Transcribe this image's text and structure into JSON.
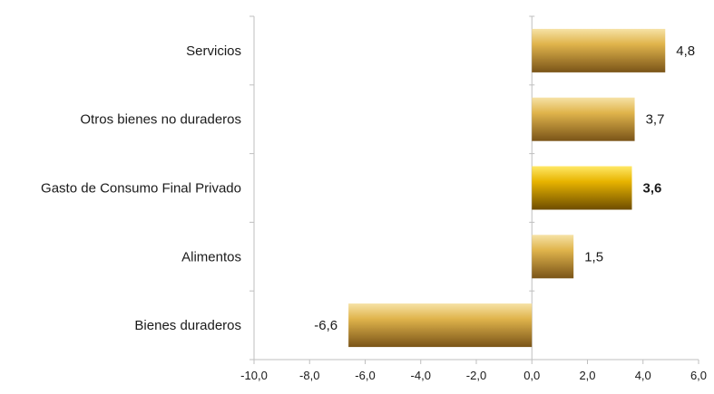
{
  "chart_data": {
    "type": "bar",
    "orientation": "horizontal",
    "categories": [
      "Servicios",
      "Otros bienes no duraderos",
      "Gasto de Consumo Final Privado",
      "Alimentos",
      "Bienes duraderos"
    ],
    "values": [
      4.8,
      3.7,
      3.6,
      1.5,
      -6.6
    ],
    "data_labels": [
      "4,8",
      "3,7",
      "3,6",
      "1,5",
      "-6,6"
    ],
    "highlight_category": "Gasto de Consumo Final Privado",
    "xlim": [
      -10,
      6
    ],
    "x_ticks": [
      -10,
      -8,
      -6,
      -4,
      -2,
      0,
      2,
      4,
      6
    ],
    "x_tick_labels": [
      "-10,0",
      "-8,0",
      "-6,0",
      "-4,0",
      "-2,0",
      "0,0",
      "2,0",
      "4,0",
      "6,0"
    ],
    "grid": false,
    "legend": "none",
    "title": "",
    "xlabel": "",
    "ylabel": "",
    "colors": {
      "bar_light": "#f6e2a6",
      "bar_mid": "#e0b44c",
      "bar_dark": "#7a5418",
      "highlight_light": "#ffe866",
      "highlight_mid": "#e8b400",
      "highlight_dark": "#6e4d00",
      "axis": "#bfbfbf"
    }
  }
}
